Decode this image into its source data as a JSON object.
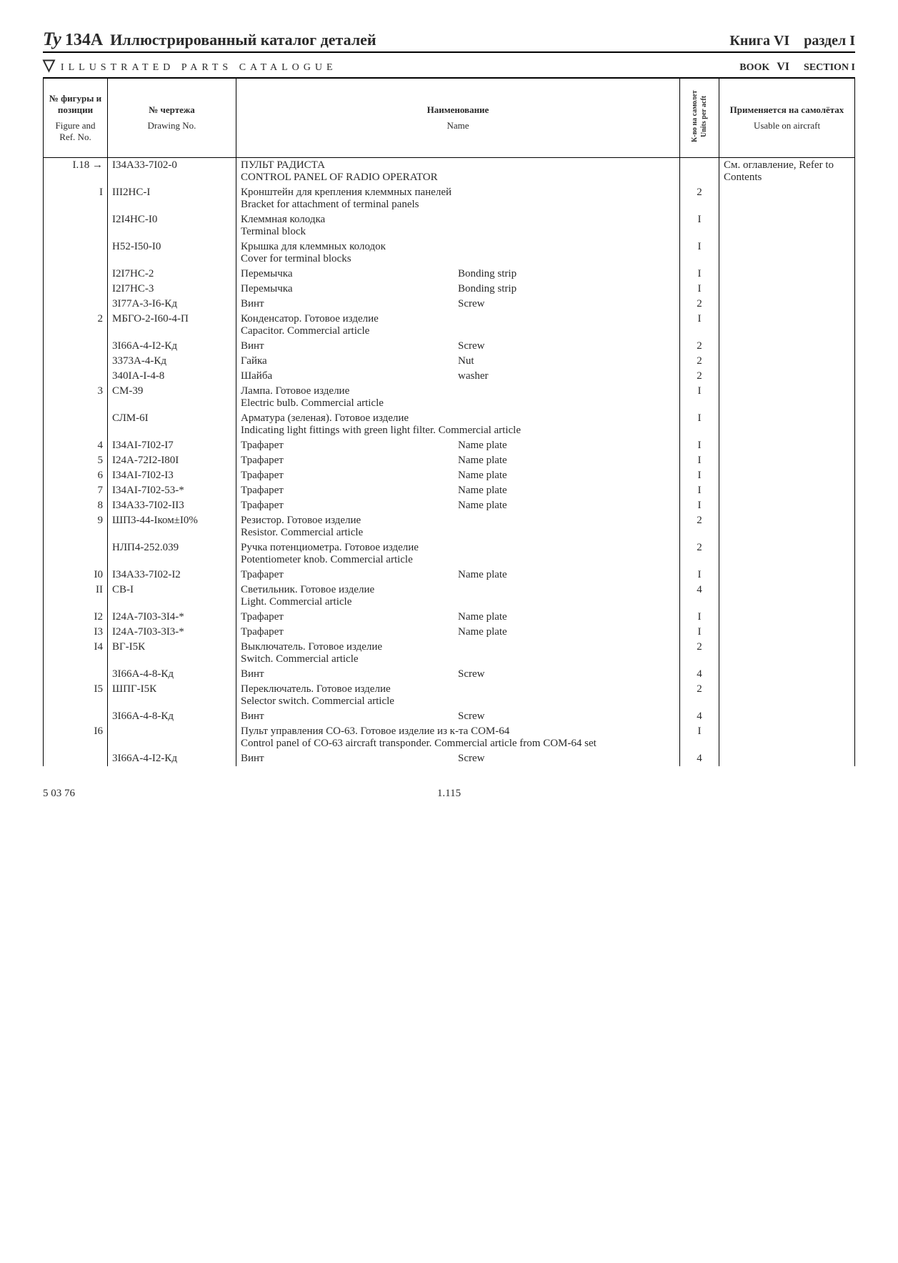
{
  "header": {
    "logo": "Ту",
    "model": "134А",
    "title_ru": "Иллюстрированный каталог деталей",
    "book_ru": "Книга VI",
    "section_ru": "раздел I",
    "title_en": "ILLUSTRATED PARTS CATALOGUE",
    "book_en": "BOOK",
    "book_en_num": "VI",
    "section_en": "SECTION I"
  },
  "columns": {
    "ref_ru": "№ фигуры и позиции",
    "ref_en": "Figure and Ref. No.",
    "draw_ru": "№ чертежа",
    "draw_en": "Drawing No.",
    "name_ru": "Наименование",
    "name_en": "Name",
    "units_ru": "К-во на самолет",
    "units_en": "Units per acft",
    "usable_ru": "Применяется на самолётах",
    "usable_en": "Usable on aircraft"
  },
  "rows": [
    {
      "ref": "I.18 →",
      "draw": "I34А33-7I02-0",
      "name_ru": "ПУЛЬТ РАДИСТА",
      "name_en": "CONTROL PANEL OF RADIO OPERATOR",
      "units": "",
      "usable": "См. оглавление, Refer to Contents"
    },
    {
      "ref": "I",
      "draw": "III2НС-I",
      "name_ru": "Кронштейн для крепления клеммных панелей",
      "name_en": "Bracket for attachment of terminal panels",
      "units": "2",
      "usable": ""
    },
    {
      "ref": "",
      "draw": "I2I4НС-I0",
      "name_ru": "Клеммная колодка",
      "name_en": "Terminal block",
      "units": "I",
      "usable": ""
    },
    {
      "ref": "",
      "draw": "Н52-I50-I0",
      "name_ru": "Крышка для клеммных колодок",
      "name_en": "Cover for terminal blocks",
      "units": "I",
      "usable": ""
    },
    {
      "ref": "",
      "draw": "I2I7НС-2",
      "name_ru": "Перемычка",
      "name_en": "Bonding strip",
      "units": "I",
      "usable": "",
      "dual": true
    },
    {
      "ref": "",
      "draw": "I2I7НС-3",
      "name_ru": "Перемычка",
      "name_en": "Bonding strip",
      "units": "I",
      "usable": "",
      "dual": true
    },
    {
      "ref": "",
      "draw": "3I77А-3-I6-Кд",
      "name_ru": "Винт",
      "name_en": "Screw",
      "units": "2",
      "usable": "",
      "dual": true
    },
    {
      "ref": "2",
      "draw": "МБГО-2-I60-4-П",
      "name_ru": "Конденсатор. Готовое изделие",
      "name_en": "Capacitor. Commercial article",
      "units": "I",
      "usable": ""
    },
    {
      "ref": "",
      "draw": "3I66А-4-I2-Кд",
      "name_ru": "Винт",
      "name_en": "Screw",
      "units": "2",
      "usable": "",
      "dual": true
    },
    {
      "ref": "",
      "draw": "3373А-4-Кд",
      "name_ru": "Гайка",
      "name_en": "Nut",
      "units": "2",
      "usable": "",
      "dual": true
    },
    {
      "ref": "",
      "draw": "340IА-I-4-8",
      "name_ru": "Шайба",
      "name_en": "washer",
      "units": "2",
      "usable": "",
      "dual": true
    },
    {
      "ref": "3",
      "draw": "СМ-39",
      "name_ru": "Лампа. Готовое изделие",
      "name_en": "Electric bulb. Commercial article",
      "units": "I",
      "usable": ""
    },
    {
      "ref": "",
      "draw": "СЛМ-6I",
      "name_ru": "Арматура (зеленая). Готовое изделие",
      "name_en": "Indicating light fittings with green light filter. Commercial article",
      "units": "I",
      "usable": ""
    },
    {
      "ref": "4",
      "draw": "I34АI-7I02-I7",
      "name_ru": "Трафарет",
      "name_en": "Name plate",
      "units": "I",
      "usable": "",
      "dual": true
    },
    {
      "ref": "5",
      "draw": "I24А-72I2-I80I",
      "name_ru": "Трафарет",
      "name_en": "Name plate",
      "units": "I",
      "usable": "",
      "dual": true
    },
    {
      "ref": "6",
      "draw": "I34АI-7I02-I3",
      "name_ru": "Трафарет",
      "name_en": "Name plate",
      "units": "I",
      "usable": "",
      "dual": true
    },
    {
      "ref": "7",
      "draw": "I34АI-7I02-53-*",
      "name_ru": "Трафарет",
      "name_en": "Name plate",
      "units": "I",
      "usable": "",
      "dual": true
    },
    {
      "ref": "8",
      "draw": "I34А33-7I02-II3",
      "name_ru": "Трафарет",
      "name_en": "Name plate",
      "units": "I",
      "usable": "",
      "dual": true
    },
    {
      "ref": "9",
      "draw": "ШП3-44-Iком±I0%",
      "name_ru": "Резистор. Готовое изделие",
      "name_en": "Resistor. Commercial article",
      "units": "2",
      "usable": ""
    },
    {
      "ref": "",
      "draw": "НЛП4-252.039",
      "name_ru": "Ручка потенциометра. Готовое изделие",
      "name_en": "Potentiometer knob. Commercial article",
      "units": "2",
      "usable": ""
    },
    {
      "ref": "I0",
      "draw": "I34А33-7I02-I2",
      "name_ru": "Трафарет",
      "name_en": "Name plate",
      "units": "I",
      "usable": "",
      "dual": true
    },
    {
      "ref": "II",
      "draw": "СВ-I",
      "name_ru": "Светильник. Готовое изделие",
      "name_en": "Light. Commercial article",
      "units": "4",
      "usable": ""
    },
    {
      "ref": "I2",
      "draw": "I24А-7I03-3I4-*",
      "name_ru": "Трафарет",
      "name_en": "Name plate",
      "units": "I",
      "usable": "",
      "dual": true
    },
    {
      "ref": "I3",
      "draw": "I24А-7I03-3I3-*",
      "name_ru": "Трафарет",
      "name_en": "Name plate",
      "units": "I",
      "usable": "",
      "dual": true
    },
    {
      "ref": "I4",
      "draw": "ВГ-I5К",
      "name_ru": "Выключатель. Готовое изделие",
      "name_en": "Switch. Commercial article",
      "units": "2",
      "usable": ""
    },
    {
      "ref": "",
      "draw": "3I66А-4-8-Кд",
      "name_ru": "Винт",
      "name_en": "Screw",
      "units": "4",
      "usable": "",
      "dual": true
    },
    {
      "ref": "I5",
      "draw": "ШПГ-I5К",
      "name_ru": "Переключатель. Готовое изделие",
      "name_en": "Selector switch. Commercial article",
      "units": "2",
      "usable": ""
    },
    {
      "ref": "",
      "draw": "3I66А-4-8-Кд",
      "name_ru": "Винт",
      "name_en": "Screw",
      "units": "4",
      "usable": "",
      "dual": true
    },
    {
      "ref": "I6",
      "draw": "",
      "name_ru": "Пульт управления СО-63. Готовое изделие из к-та СОМ-64",
      "name_en": "Control panel of CO-63 aircraft transponder. Commercial article from СОМ-64 set",
      "units": "I",
      "usable": ""
    },
    {
      "ref": "",
      "draw": "3I66А-4-I2-Кд",
      "name_ru": "Винт",
      "name_en": "Screw",
      "units": "4",
      "usable": "",
      "dual": true
    }
  ],
  "footer": {
    "date": "5 03 76",
    "page": "1.115"
  }
}
